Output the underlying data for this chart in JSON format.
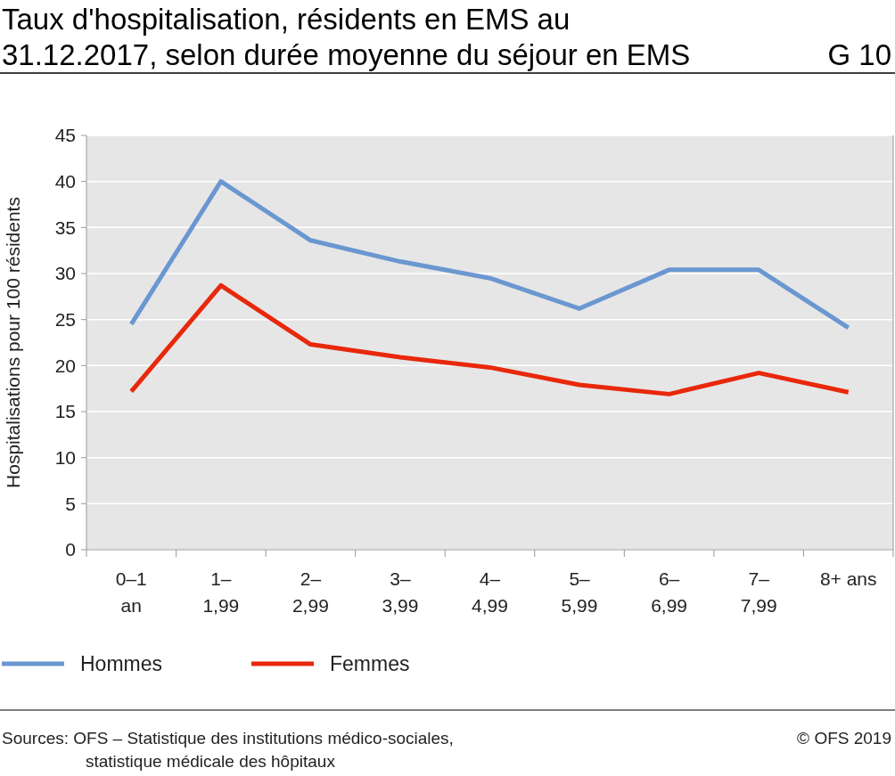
{
  "chart_data": {
    "type": "line",
    "title": "Taux d'hospitalisation, résidents en EMS au\n31.12.2017, selon durée moyenne du séjour en EMS",
    "ylabel": "Hospitalisations pour 100 résidents",
    "categories": [
      "0–1\nan",
      "1–\n1,99",
      "2–\n2,99",
      "3–\n3,99",
      "4–\n4,99",
      "5–\n5,99",
      "6–\n6,99",
      "7–\n7,99",
      "8+ ans"
    ],
    "series": [
      {
        "name": "Hommes",
        "color": "#6a97d0",
        "values": [
          24.5,
          40.0,
          33.6,
          31.3,
          29.5,
          26.2,
          30.4,
          30.4,
          24.1
        ]
      },
      {
        "name": "Femmes",
        "color": "#e8280b",
        "values": [
          17.2,
          28.7,
          22.3,
          20.9,
          19.8,
          17.9,
          16.9,
          19.2,
          17.1
        ]
      }
    ],
    "ylim": [
      0,
      45
    ],
    "yticks": [
      0,
      5,
      10,
      15,
      20,
      25,
      30,
      35,
      40,
      45
    ],
    "grid": "y",
    "legend": "bottom",
    "marker": "none",
    "line_style": "solid",
    "annotations": [
      "G 10",
      "Sources: OFS – Statistique des institutions médico-sociales,\nstatistique médicale des hôpitaux",
      "© OFS 2019"
    ]
  }
}
